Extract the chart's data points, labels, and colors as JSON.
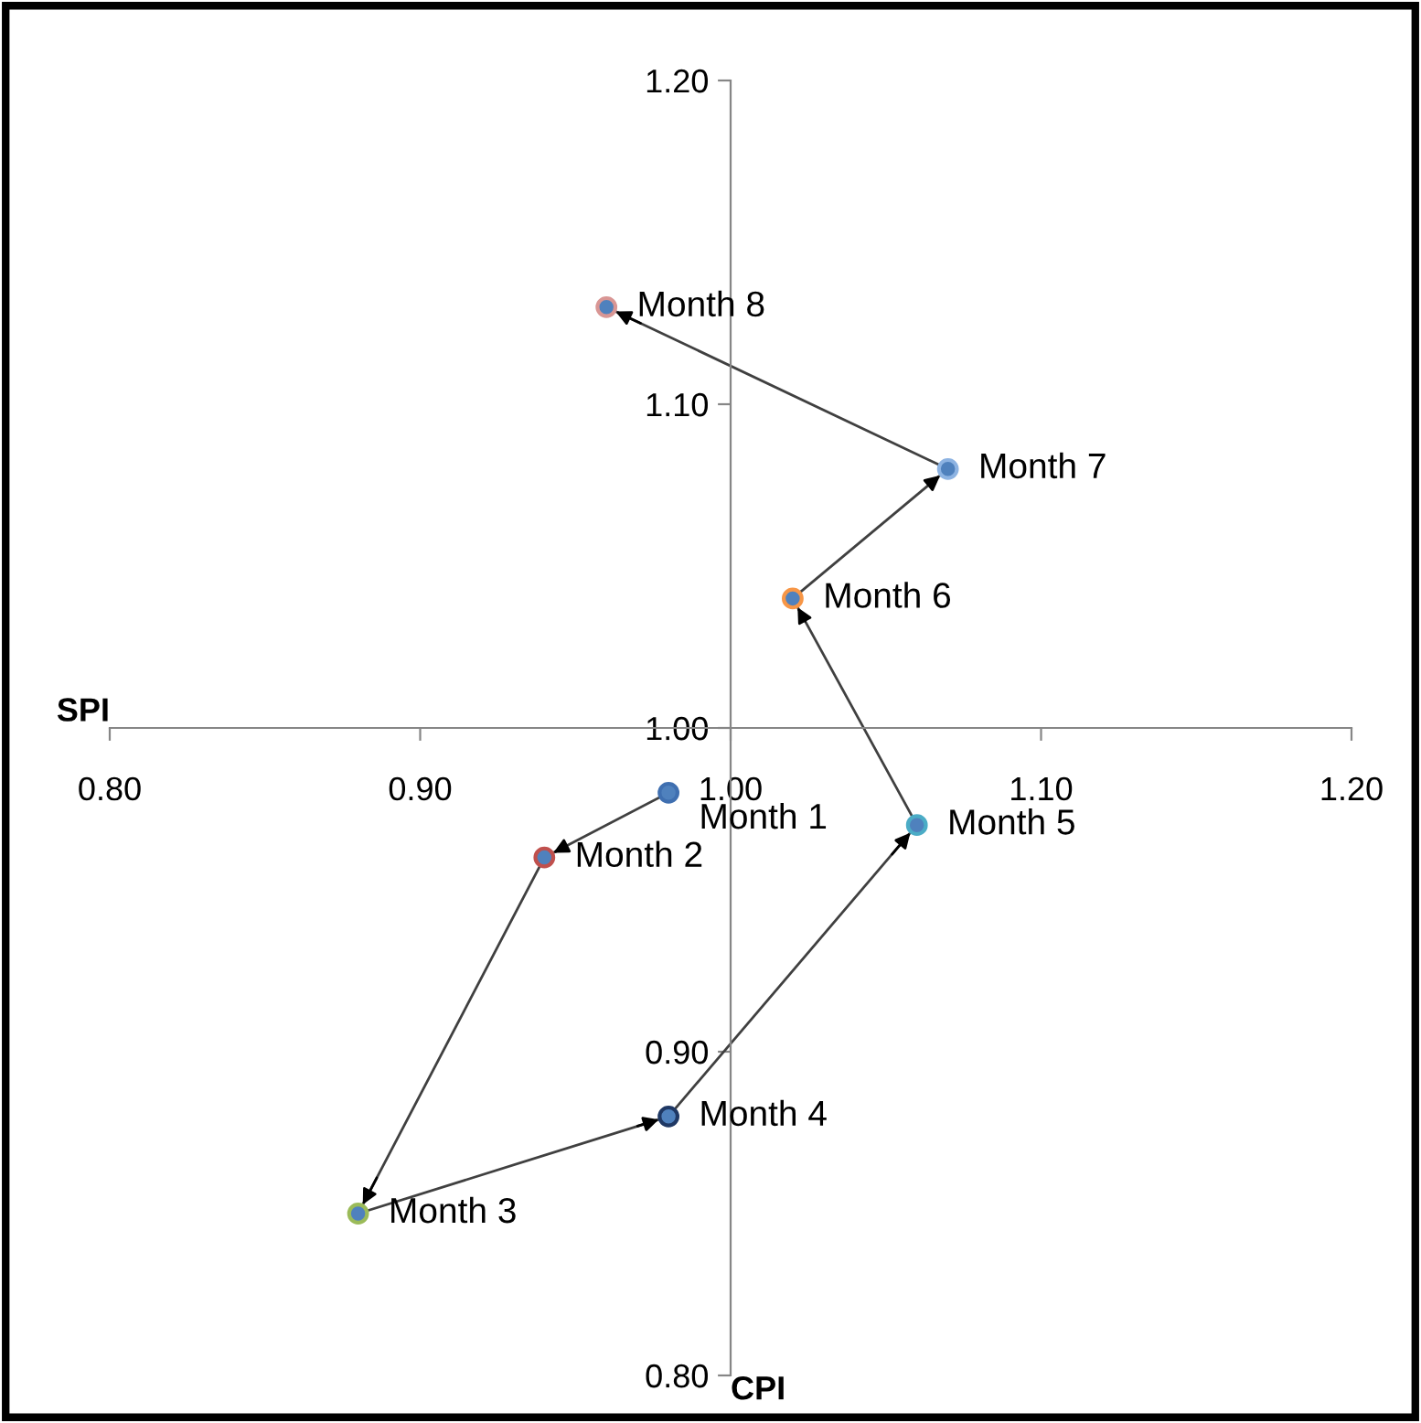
{
  "chart_data": {
    "type": "line",
    "xlabel": "CPI",
    "ylabel": "SPI",
    "xlim": [
      0.8,
      1.2
    ],
    "ylim": [
      0.8,
      1.2
    ],
    "xticks": [
      {
        "value": 0.8,
        "label": "0.80"
      },
      {
        "value": 0.9,
        "label": "0.90"
      },
      {
        "value": 1.0,
        "label": "1.00"
      },
      {
        "value": 1.1,
        "label": "1.10"
      },
      {
        "value": 1.2,
        "label": "1.20"
      }
    ],
    "yticks": [
      {
        "value": 0.8,
        "label": "0.80"
      },
      {
        "value": 0.9,
        "label": "0.90"
      },
      {
        "value": 1.0,
        "label": "1.00"
      },
      {
        "value": 1.1,
        "label": "1.10"
      },
      {
        "value": 1.2,
        "label": "1.20"
      }
    ],
    "marker": "circle",
    "grid": false,
    "legend": false,
    "series": [
      {
        "color": "#404040",
        "colors": [
          "#3f6fb0",
          "#c0504d",
          "#9bbb59",
          "#1f3864",
          "#4bacc6",
          "#f79646",
          "#8db3e2",
          "#d99694"
        ],
        "x": [
          0.98,
          0.94,
          0.88,
          0.98,
          1.06,
          1.02,
          1.07,
          0.96
        ],
        "values": [
          0.98,
          0.96,
          0.85,
          0.88,
          0.97,
          1.04,
          1.08,
          1.13
        ]
      }
    ],
    "annotations": [
      {
        "text": "Month 1",
        "x": 0.98,
        "y": 0.98
      },
      {
        "text": "Month 2",
        "x": 0.94,
        "y": 0.96
      },
      {
        "text": "Month 3",
        "x": 0.88,
        "y": 0.85
      },
      {
        "text": "Month 4",
        "x": 0.98,
        "y": 0.88
      },
      {
        "text": "Month 5",
        "x": 1.06,
        "y": 0.97
      },
      {
        "text": "Month 6",
        "x": 1.02,
        "y": 1.04
      },
      {
        "text": "Month 7",
        "x": 1.07,
        "y": 1.08
      },
      {
        "text": "Month 8",
        "x": 0.96,
        "y": 1.13
      }
    ]
  }
}
